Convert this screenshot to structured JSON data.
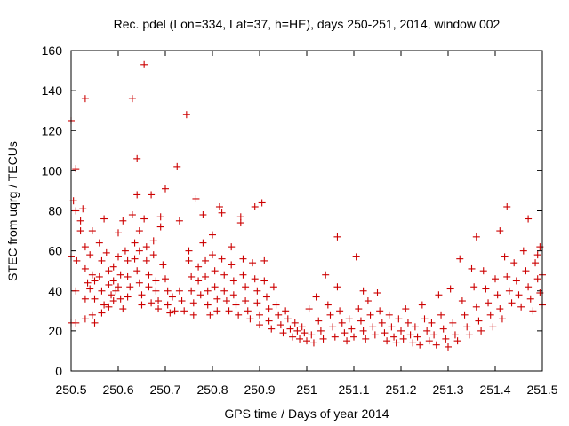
{
  "chart_data": {
    "type": "scatter",
    "title": "Rec. pdel (Lon=334, Lat=37, h=HE), days 250-251, 2014, window 002",
    "xlabel": "GPS time / Days of year 2014",
    "ylabel": "STEC from uqrg / TECUs",
    "xlim": [
      250.5,
      251.5
    ],
    "ylim": [
      0,
      160
    ],
    "xticks": [
      250.5,
      250.6,
      250.7,
      250.8,
      250.9,
      251.0,
      251.1,
      251.2,
      251.3,
      251.4,
      251.5
    ],
    "xtick_labels": [
      "250.5",
      "250.6",
      "250.7",
      "250.8",
      "250.9",
      "251",
      "251.1",
      "251.2",
      "251.3",
      "251.4",
      "251.5"
    ],
    "yticks": [
      0,
      20,
      40,
      60,
      80,
      100,
      120,
      140,
      160
    ],
    "ytick_labels": [
      "0",
      "20",
      "40",
      "60",
      "80",
      "100",
      "120",
      "140",
      "160"
    ],
    "grid": false,
    "marker": "plus",
    "marker_color": "#cc0000",
    "series": [
      {
        "points": [
          [
            250.5,
            125
          ],
          [
            250.505,
            85
          ],
          [
            250.51,
            101
          ],
          [
            250.51,
            80
          ],
          [
            250.512,
            55
          ],
          [
            250.51,
            40
          ],
          [
            250.5,
            57
          ],
          [
            250.5,
            24
          ],
          [
            250.51,
            24
          ],
          [
            250.53,
            136
          ],
          [
            250.525,
            81
          ],
          [
            250.53,
            62
          ],
          [
            250.53,
            51
          ],
          [
            250.535,
            44
          ],
          [
            250.53,
            36
          ],
          [
            250.53,
            26
          ],
          [
            250.52,
            75
          ],
          [
            250.52,
            70
          ],
          [
            250.545,
            70
          ],
          [
            250.54,
            58
          ],
          [
            250.545,
            48
          ],
          [
            250.54,
            41
          ],
          [
            250.55,
            36
          ],
          [
            250.545,
            28
          ],
          [
            250.55,
            45
          ],
          [
            250.55,
            24
          ],
          [
            250.56,
            64
          ],
          [
            250.565,
            55
          ],
          [
            250.56,
            47
          ],
          [
            250.565,
            40
          ],
          [
            250.57,
            33
          ],
          [
            250.565,
            29
          ],
          [
            250.57,
            76
          ],
          [
            250.575,
            59
          ],
          [
            250.58,
            50
          ],
          [
            250.58,
            43
          ],
          [
            250.585,
            38
          ],
          [
            250.58,
            32
          ],
          [
            250.59,
            52
          ],
          [
            250.59,
            45
          ],
          [
            250.595,
            40
          ],
          [
            250.59,
            35
          ],
          [
            250.6,
            69
          ],
          [
            250.6,
            57
          ],
          [
            250.605,
            48
          ],
          [
            250.6,
            42
          ],
          [
            250.605,
            36
          ],
          [
            250.61,
            31
          ],
          [
            250.61,
            75
          ],
          [
            250.615,
            60
          ],
          [
            250.62,
            55
          ],
          [
            250.62,
            47
          ],
          [
            250.625,
            42
          ],
          [
            250.62,
            37
          ],
          [
            250.63,
            78
          ],
          [
            250.63,
            136
          ],
          [
            250.635,
            64
          ],
          [
            250.635,
            56
          ],
          [
            250.64,
            106
          ],
          [
            250.64,
            88
          ],
          [
            250.645,
            70
          ],
          [
            250.645,
            60
          ],
          [
            250.64,
            50
          ],
          [
            250.645,
            44
          ],
          [
            250.65,
            38
          ],
          [
            250.65,
            33
          ],
          [
            250.655,
            153
          ],
          [
            250.655,
            76
          ],
          [
            250.66,
            62
          ],
          [
            250.66,
            55
          ],
          [
            250.665,
            48
          ],
          [
            250.665,
            42
          ],
          [
            250.67,
            34
          ],
          [
            250.67,
            88
          ],
          [
            250.675,
            65
          ],
          [
            250.675,
            58
          ],
          [
            250.68,
            45
          ],
          [
            250.68,
            40
          ],
          [
            250.685,
            35
          ],
          [
            250.685,
            31
          ],
          [
            250.69,
            77
          ],
          [
            250.69,
            72
          ],
          [
            250.695,
            53
          ],
          [
            250.7,
            91
          ],
          [
            250.7,
            46
          ],
          [
            250.705,
            40
          ],
          [
            250.705,
            33
          ],
          [
            250.71,
            29
          ],
          [
            250.715,
            37
          ],
          [
            250.72,
            30
          ],
          [
            250.725,
            102
          ],
          [
            250.73,
            75
          ],
          [
            250.73,
            40
          ],
          [
            250.735,
            35
          ],
          [
            250.74,
            30
          ],
          [
            250.745,
            128
          ],
          [
            250.75,
            60
          ],
          [
            250.75,
            55
          ],
          [
            250.755,
            47
          ],
          [
            250.755,
            40
          ],
          [
            250.76,
            34
          ],
          [
            250.76,
            28
          ],
          [
            250.765,
            86
          ],
          [
            250.77,
            52
          ],
          [
            250.77,
            45
          ],
          [
            250.775,
            38
          ],
          [
            250.78,
            78
          ],
          [
            250.78,
            64
          ],
          [
            250.785,
            55
          ],
          [
            250.785,
            47
          ],
          [
            250.79,
            40
          ],
          [
            250.79,
            33
          ],
          [
            250.795,
            28
          ],
          [
            250.8,
            68
          ],
          [
            250.8,
            58
          ],
          [
            250.805,
            50
          ],
          [
            250.805,
            42
          ],
          [
            250.81,
            36
          ],
          [
            250.81,
            30
          ],
          [
            250.815,
            82
          ],
          [
            250.82,
            79
          ],
          [
            250.82,
            56
          ],
          [
            250.825,
            48
          ],
          [
            250.825,
            40
          ],
          [
            250.83,
            35
          ],
          [
            250.835,
            30
          ],
          [
            250.84,
            62
          ],
          [
            250.84,
            53
          ],
          [
            250.845,
            45
          ],
          [
            250.845,
            38
          ],
          [
            250.85,
            33
          ],
          [
            250.855,
            28
          ],
          [
            250.86,
            77
          ],
          [
            250.86,
            74
          ],
          [
            250.865,
            56
          ],
          [
            250.865,
            48
          ],
          [
            250.87,
            42
          ],
          [
            250.87,
            35
          ],
          [
            250.875,
            30
          ],
          [
            250.88,
            26
          ],
          [
            250.885,
            54
          ],
          [
            250.89,
            82
          ],
          [
            250.89,
            46
          ],
          [
            250.895,
            40
          ],
          [
            250.895,
            34
          ],
          [
            250.9,
            28
          ],
          [
            250.9,
            23
          ],
          [
            250.905,
            84
          ],
          [
            250.91,
            55
          ],
          [
            250.91,
            45
          ],
          [
            250.915,
            37
          ],
          [
            250.92,
            31
          ],
          [
            250.92,
            25
          ],
          [
            250.925,
            21
          ],
          [
            250.93,
            42
          ],
          [
            250.935,
            33
          ],
          [
            250.94,
            28
          ],
          [
            250.945,
            23
          ],
          [
            250.95,
            19
          ],
          [
            250.955,
            30
          ],
          [
            250.96,
            26
          ],
          [
            250.965,
            21
          ],
          [
            250.97,
            17
          ],
          [
            250.975,
            24
          ],
          [
            250.98,
            20
          ],
          [
            250.985,
            16
          ],
          [
            250.99,
            22
          ],
          [
            250.995,
            19
          ],
          [
            251.0,
            15
          ],
          [
            251.005,
            31
          ],
          [
            251.01,
            18
          ],
          [
            251.015,
            14
          ],
          [
            251.02,
            37
          ],
          [
            251.025,
            25
          ],
          [
            251.03,
            20
          ],
          [
            251.035,
            16
          ],
          [
            251.04,
            48
          ],
          [
            251.045,
            33
          ],
          [
            251.05,
            28
          ],
          [
            251.055,
            22
          ],
          [
            251.06,
            17
          ],
          [
            251.065,
            42
          ],
          [
            251.065,
            67
          ],
          [
            251.07,
            30
          ],
          [
            251.075,
            24
          ],
          [
            251.08,
            19
          ],
          [
            251.085,
            15
          ],
          [
            251.09,
            26
          ],
          [
            251.095,
            21
          ],
          [
            251.1,
            17
          ],
          [
            251.105,
            57
          ],
          [
            251.11,
            31
          ],
          [
            251.115,
            25
          ],
          [
            251.12,
            40
          ],
          [
            251.12,
            20
          ],
          [
            251.125,
            16
          ],
          [
            251.13,
            35
          ],
          [
            251.135,
            28
          ],
          [
            251.14,
            22
          ],
          [
            251.145,
            18
          ],
          [
            251.15,
            39
          ],
          [
            251.155,
            30
          ],
          [
            251.16,
            24
          ],
          [
            251.165,
            19
          ],
          [
            251.17,
            15
          ],
          [
            251.175,
            28
          ],
          [
            251.18,
            22
          ],
          [
            251.185,
            17
          ],
          [
            251.19,
            14
          ],
          [
            251.195,
            26
          ],
          [
            251.2,
            20
          ],
          [
            251.205,
            16
          ],
          [
            251.21,
            31
          ],
          [
            251.215,
            24
          ],
          [
            251.22,
            18
          ],
          [
            251.225,
            14
          ],
          [
            251.23,
            22
          ],
          [
            251.235,
            17
          ],
          [
            251.24,
            13
          ],
          [
            251.245,
            33
          ],
          [
            251.25,
            26
          ],
          [
            251.255,
            20
          ],
          [
            251.26,
            15
          ],
          [
            251.265,
            24
          ],
          [
            251.27,
            18
          ],
          [
            251.275,
            13
          ],
          [
            251.28,
            38
          ],
          [
            251.285,
            28
          ],
          [
            251.29,
            21
          ],
          [
            251.295,
            16
          ],
          [
            251.3,
            12
          ],
          [
            251.305,
            41
          ],
          [
            251.31,
            24
          ],
          [
            251.315,
            18
          ],
          [
            251.32,
            15
          ],
          [
            251.325,
            56
          ],
          [
            251.33,
            35
          ],
          [
            251.335,
            28
          ],
          [
            251.34,
            22
          ],
          [
            251.345,
            18
          ],
          [
            251.35,
            51
          ],
          [
            251.355,
            42
          ],
          [
            251.36,
            67
          ],
          [
            251.36,
            32
          ],
          [
            251.365,
            25
          ],
          [
            251.37,
            20
          ],
          [
            251.375,
            50
          ],
          [
            251.38,
            41
          ],
          [
            251.385,
            34
          ],
          [
            251.39,
            28
          ],
          [
            251.395,
            22
          ],
          [
            251.4,
            46
          ],
          [
            251.405,
            38
          ],
          [
            251.41,
            70
          ],
          [
            251.41,
            31
          ],
          [
            251.415,
            26
          ],
          [
            251.42,
            57
          ],
          [
            251.425,
            82
          ],
          [
            251.425,
            47
          ],
          [
            251.43,
            40
          ],
          [
            251.435,
            34
          ],
          [
            251.44,
            54
          ],
          [
            251.445,
            45
          ],
          [
            251.45,
            38
          ],
          [
            251.455,
            32
          ],
          [
            251.46,
            60
          ],
          [
            251.465,
            50
          ],
          [
            251.47,
            76
          ],
          [
            251.47,
            42
          ],
          [
            251.475,
            36
          ],
          [
            251.48,
            30
          ],
          [
            251.485,
            54
          ],
          [
            251.49,
            58
          ],
          [
            251.49,
            46
          ],
          [
            251.495,
            39
          ],
          [
            251.5,
            33
          ],
          [
            251.5,
            48
          ],
          [
            251.495,
            62
          ]
        ]
      }
    ]
  }
}
